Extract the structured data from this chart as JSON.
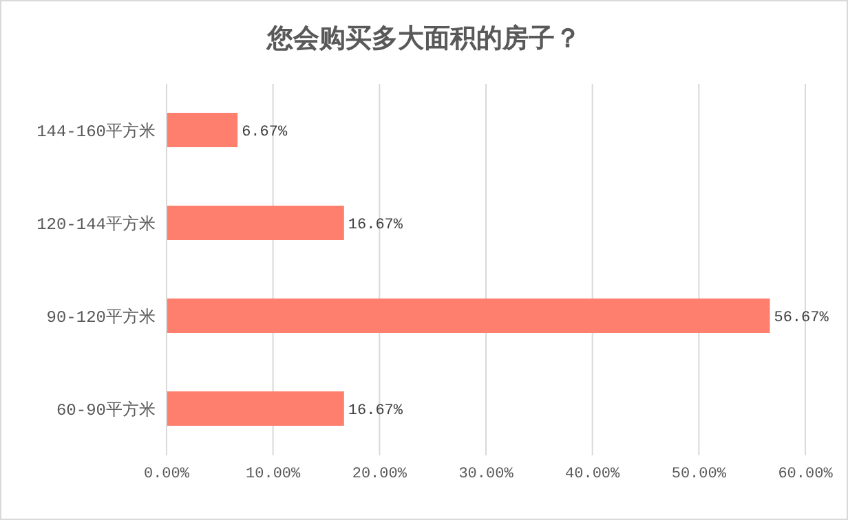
{
  "chart_data": {
    "type": "bar",
    "orientation": "horizontal",
    "title": "您会购买多大面积的房子？",
    "categories": [
      "144-160平方米",
      "120-144平方米",
      "90-120平方米",
      "60-90平方米"
    ],
    "values": [
      6.67,
      16.67,
      56.67,
      16.67
    ],
    "value_labels": [
      "6.67%",
      "16.67%",
      "56.67%",
      "16.67%"
    ],
    "color": "#ff7f6e",
    "xlim": [
      0,
      60
    ],
    "xticks": [
      {
        "value": 0,
        "label": "0.00%"
      },
      {
        "value": 10,
        "label": "10.00%"
      },
      {
        "value": 20,
        "label": "20.00%"
      },
      {
        "value": 30,
        "label": "30.00%"
      },
      {
        "value": 40,
        "label": "40.00%"
      },
      {
        "value": 50,
        "label": "50.00%"
      },
      {
        "value": 60,
        "label": "60.00%"
      }
    ],
    "grid": "x",
    "legend": false
  }
}
